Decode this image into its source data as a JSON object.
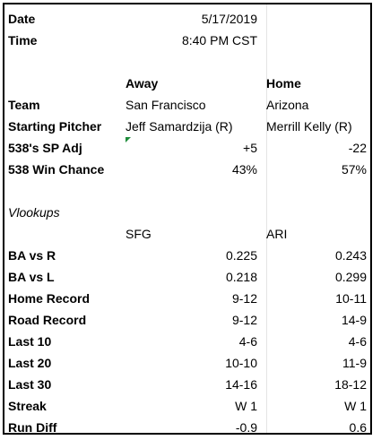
{
  "game": {
    "date_label": "Date",
    "date": "5/17/2019",
    "time_label": "Time",
    "time": "8:40 PM CST"
  },
  "headers": {
    "away": "Away",
    "home": "Home"
  },
  "team": {
    "label": "Team",
    "away": "San Francisco",
    "home": "Arizona"
  },
  "pitcher": {
    "label": "Starting Pitcher",
    "away": "Jeff Samardzija (R)",
    "home": "Merrill Kelly (R)"
  },
  "sp_adj": {
    "label": "538's SP Adj",
    "away": "+5",
    "home": "-22"
  },
  "win_chance": {
    "label": "538 Win Chance",
    "away": "43%",
    "home": "57%"
  },
  "vlookups": {
    "label": "Vlookups",
    "away_code": "SFG",
    "home_code": "ARI"
  },
  "stats": [
    {
      "label": "BA vs R",
      "away": "0.225",
      "home": "0.243"
    },
    {
      "label": "BA vs L",
      "away": "0.218",
      "home": "0.299"
    },
    {
      "label": "Home Record",
      "away": "9-12",
      "home": "10-11"
    },
    {
      "label": "Road Record",
      "away": "9-12",
      "home": "14-9"
    },
    {
      "label": "Last 10",
      "away": "4-6",
      "home": "4-6"
    },
    {
      "label": "Last 20",
      "away": "10-10",
      "home": "11-9"
    },
    {
      "label": "Last 30",
      "away": "14-16",
      "home": "18-12"
    },
    {
      "label": "Streak",
      "away": "W 1",
      "home": "W 1"
    },
    {
      "label": "Run Diff",
      "away": "-0.9",
      "home": "0.6"
    }
  ],
  "colors": {
    "comment_indicator": "#1e8c3a",
    "gridline": "#e4e4e4"
  }
}
